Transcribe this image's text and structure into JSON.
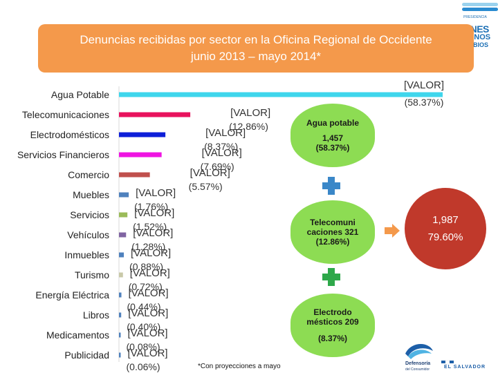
{
  "title": {
    "line1": "Denuncias recibidas por sector en la Oficina Regional de Occidente",
    "line2": "junio 2013 – mayo 2014*"
  },
  "chart_data": {
    "type": "bar",
    "orientation": "horizontal",
    "categories": [
      "Agua Potable",
      "Telecomunicaciones",
      "Electrodomésticos",
      "Servicios Financieros",
      "Comercio",
      "Muebles",
      "Servicios",
      "Vehículos",
      "Inmuebles",
      "Turismo",
      "Energía Eléctrica",
      "Libros",
      "Medicamentos",
      "Publicidad"
    ],
    "values": [
      58.37,
      12.86,
      8.37,
      7.69,
      5.57,
      1.76,
      1.52,
      1.28,
      0.88,
      0.72,
      0.44,
      0.4,
      0.08,
      0.06
    ],
    "data_labels": [
      {
        "name": "[VALOR]",
        "pct": "(58.37%)"
      },
      {
        "name": "[VALOR]",
        "pct": "(12.86%)"
      },
      {
        "name": "[VALOR]",
        "pct": "(8.37%)"
      },
      {
        "name": "[VALOR]",
        "pct": "(7.69%)"
      },
      {
        "name": "[VALOR]",
        "pct": "(5.57%)"
      },
      {
        "name": "[VALOR]",
        "pct": "(1.76%)"
      },
      {
        "name": "[VALOR]",
        "pct": "(1.52%)"
      },
      {
        "name": "[VALOR]",
        "pct": "(1.28%)"
      },
      {
        "name": "[VALOR]",
        "pct": "(0.88%)"
      },
      {
        "name": "[VALOR]",
        "pct": "(0.72%)"
      },
      {
        "name": "[VALOR]",
        "pct": "(0.44%)"
      },
      {
        "name": "[VALOR]",
        "pct": "(0.40%)"
      },
      {
        "name": "[VALOR]",
        "pct": "(0.08%)"
      },
      {
        "name": "[VALOR]",
        "pct": "(0.06%)"
      }
    ],
    "colors": [
      "#3fd6ec",
      "#e8125d",
      "#0e1fd8",
      "#ef14e2",
      "#c0504d",
      "#4f81bd",
      "#9bbb59",
      "#8064a2",
      "#4f81bd",
      "#c9c9a8",
      "#4f81bd",
      "#4f81bd",
      "#4f81bd",
      "#4f81bd"
    ],
    "xlim": [
      0,
      58.37
    ],
    "grid": false,
    "legend": "none"
  },
  "summary": {
    "boxes": [
      {
        "l1": "Agua potable",
        "l2": "1,457",
        "l3": "(58.37%)"
      },
      {
        "l1": "Telecomuni",
        "l2": "caciones 321",
        "l3": "(12.86%)"
      },
      {
        "l1": "Electrodo",
        "l2": "mésticos 209",
        "l3": "(8.37%)"
      }
    ],
    "total_value": "1,987",
    "total_pct": "79.60%",
    "box_color": "#8ddc53",
    "plus_color_blue": "#3a87c8",
    "plus_color_green": "#2ea84a",
    "total_color": "#c0392b"
  },
  "footnote": "*Con proyecciones a mayo",
  "logos": {
    "top_small": "PRESIDENCIA",
    "top_big": "UNES",
    "top_mid": "UENOS",
    "top_low": "AMBIOS",
    "bottom_left_1": "Defensoría",
    "bottom_left_2": "del Consumidor",
    "bottom_right": "EL SALVADOR"
  }
}
